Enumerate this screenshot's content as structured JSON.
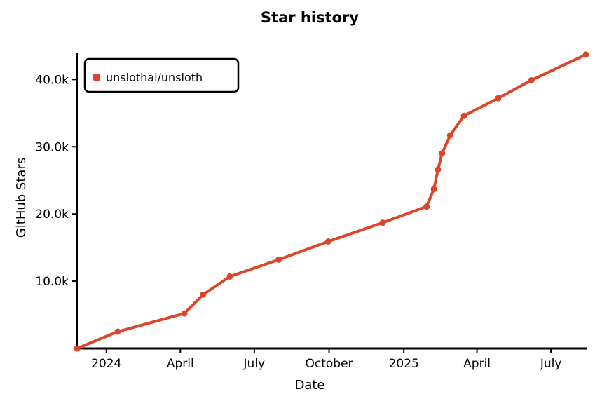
{
  "chart_data": {
    "type": "line",
    "title": "Star history",
    "xlabel": "Date",
    "ylabel": "GitHub Stars",
    "x_ticks": [
      "2024",
      "April",
      "July",
      "October",
      "2025",
      "April",
      "July"
    ],
    "x_tick_dates": [
      "2024-01-01",
      "2024-04-01",
      "2024-07-01",
      "2024-10-01",
      "2025-01-01",
      "2025-04-01",
      "2025-07-01"
    ],
    "y_ticks": [
      "10.0k",
      "20.0k",
      "30.0k",
      "40.0k"
    ],
    "y_tick_values": [
      10000,
      20000,
      30000,
      40000
    ],
    "xlim": [
      "2023-11-26",
      "2025-08-13"
    ],
    "ylim": [
      0,
      44000
    ],
    "grid": false,
    "legend": "top-left",
    "series": [
      {
        "name": "unslothai/unsloth",
        "color": "#dd4528",
        "points": [
          [
            "2023-11-26",
            0
          ],
          [
            "2024-01-15",
            2500
          ],
          [
            "2024-04-06",
            5200
          ],
          [
            "2024-04-29",
            8000
          ],
          [
            "2024-06-01",
            10700
          ],
          [
            "2024-07-31",
            13200
          ],
          [
            "2024-09-30",
            15900
          ],
          [
            "2024-12-06",
            18700
          ],
          [
            "2025-01-29",
            21100
          ],
          [
            "2025-02-07",
            23700
          ],
          [
            "2025-02-12",
            26600
          ],
          [
            "2025-02-17",
            29000
          ],
          [
            "2025-02-27",
            31700
          ],
          [
            "2025-03-16",
            34600
          ],
          [
            "2025-04-27",
            37200
          ],
          [
            "2025-06-07",
            39900
          ],
          [
            "2025-08-13",
            43700
          ]
        ]
      }
    ]
  }
}
